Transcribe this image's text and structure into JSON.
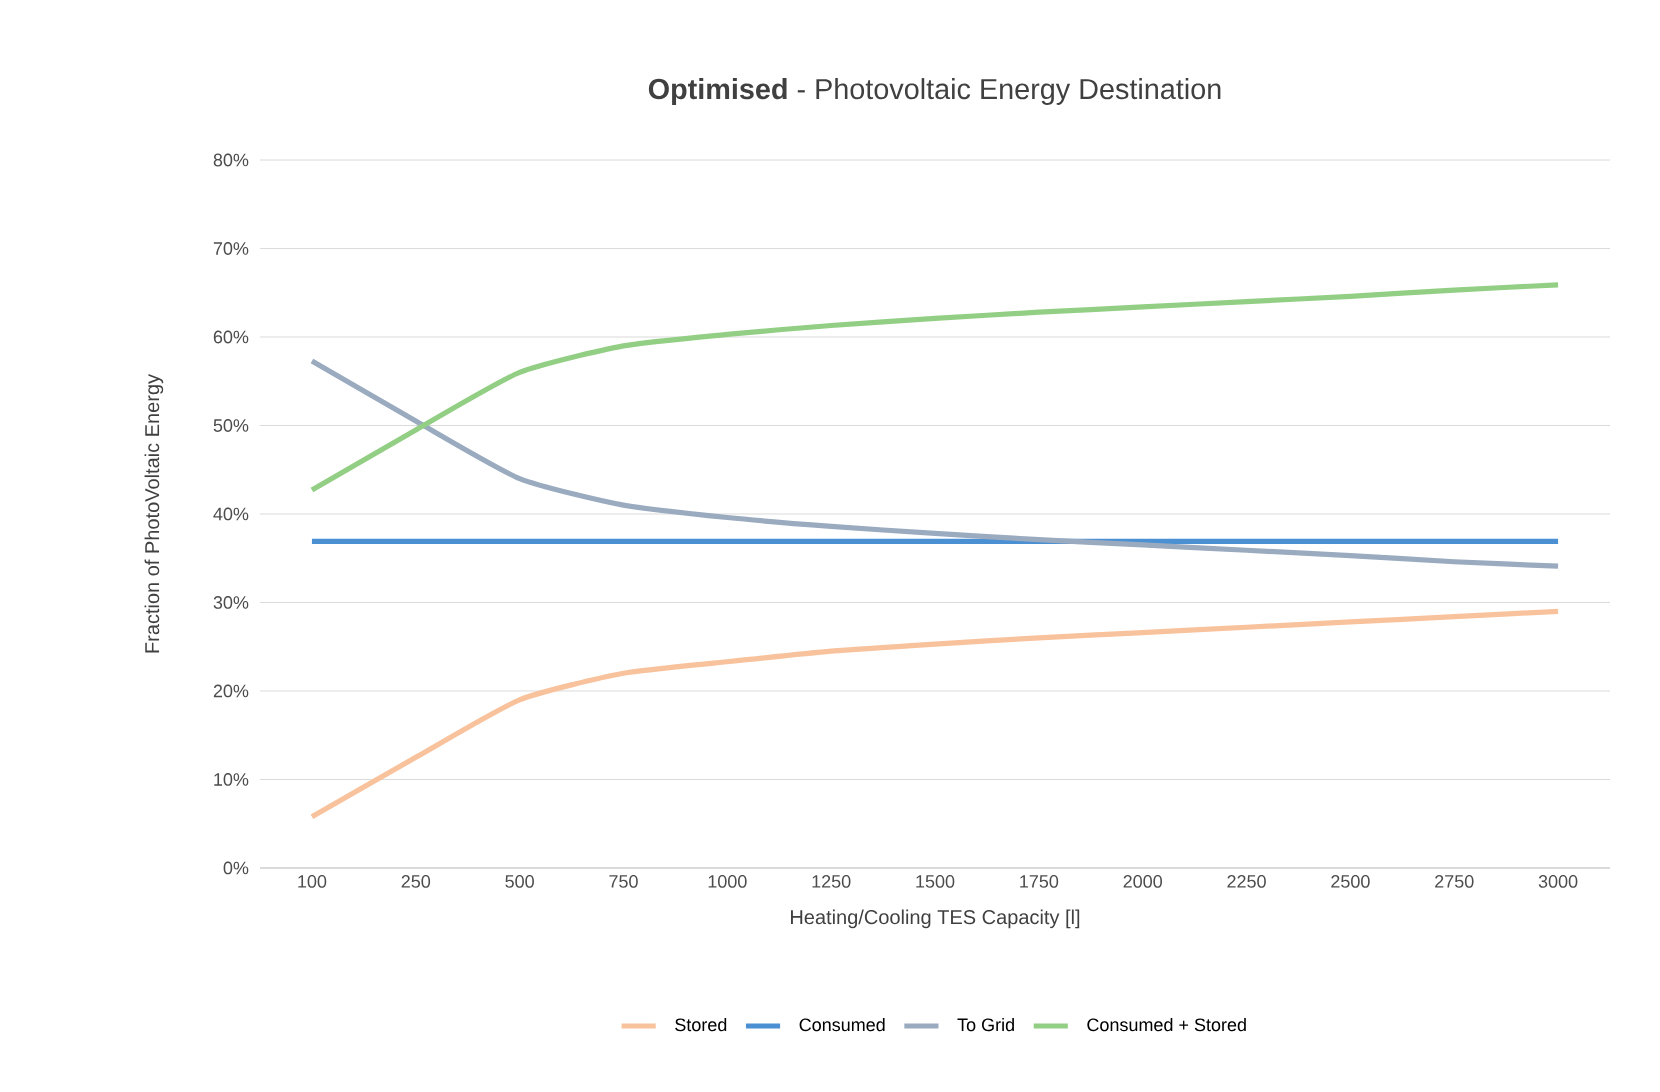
{
  "chart_data": {
    "type": "line",
    "title": "**Optimised** - Photovoltaic Energy Destination",
    "xlabel": "Heating/Cooling TES Capacity [l]",
    "ylabel": "Fraction of PhotoVoltaic Energy",
    "categories": [
      "100",
      "250",
      "500",
      "750",
      "1000",
      "1250",
      "1500",
      "1750",
      "2000",
      "2250",
      "2500",
      "2750",
      "3000"
    ],
    "series": [
      {
        "name": "Stored",
        "color": "#f8c29c",
        "values": [
          5.8,
          12.5,
          19,
          22,
          23.3,
          24.5,
          25.3,
          26,
          26.6,
          27.2,
          27.8,
          28.4,
          29.0
        ]
      },
      {
        "name": "Consumed",
        "color": "#4a90d2",
        "values": [
          36.9,
          36.9,
          36.9,
          36.9,
          36.9,
          36.9,
          36.9,
          36.9,
          36.9,
          36.9,
          36.9,
          36.9,
          36.9
        ]
      },
      {
        "name": "To Grid",
        "color": "#9aabc0",
        "values": [
          57.3,
          50.5,
          44,
          41,
          39.6,
          38.6,
          37.8,
          37.1,
          36.5,
          35.9,
          35.3,
          34.6,
          34.1
        ]
      },
      {
        "name": "Consumed + Stored",
        "color": "#92cf84",
        "values": [
          42.7,
          49.5,
          56,
          59,
          60.3,
          61.3,
          62.1,
          62.8,
          63.4,
          64,
          64.6,
          65.3,
          65.9
        ]
      }
    ],
    "ylim": [
      0,
      80
    ],
    "yticks": [
      {
        "value": 0,
        "label": "0%"
      },
      {
        "value": 10,
        "label": "10%"
      },
      {
        "value": 20,
        "label": "20%"
      },
      {
        "value": 30,
        "label": "30%"
      },
      {
        "value": 40,
        "label": "40%"
      },
      {
        "value": 50,
        "label": "50%"
      },
      {
        "value": 60,
        "label": "60%"
      },
      {
        "value": 70,
        "label": "70%"
      },
      {
        "value": 80,
        "label": "80%"
      }
    ],
    "grid": "y",
    "legend": "bottom",
    "marker": "none",
    "line_style": "solid"
  }
}
